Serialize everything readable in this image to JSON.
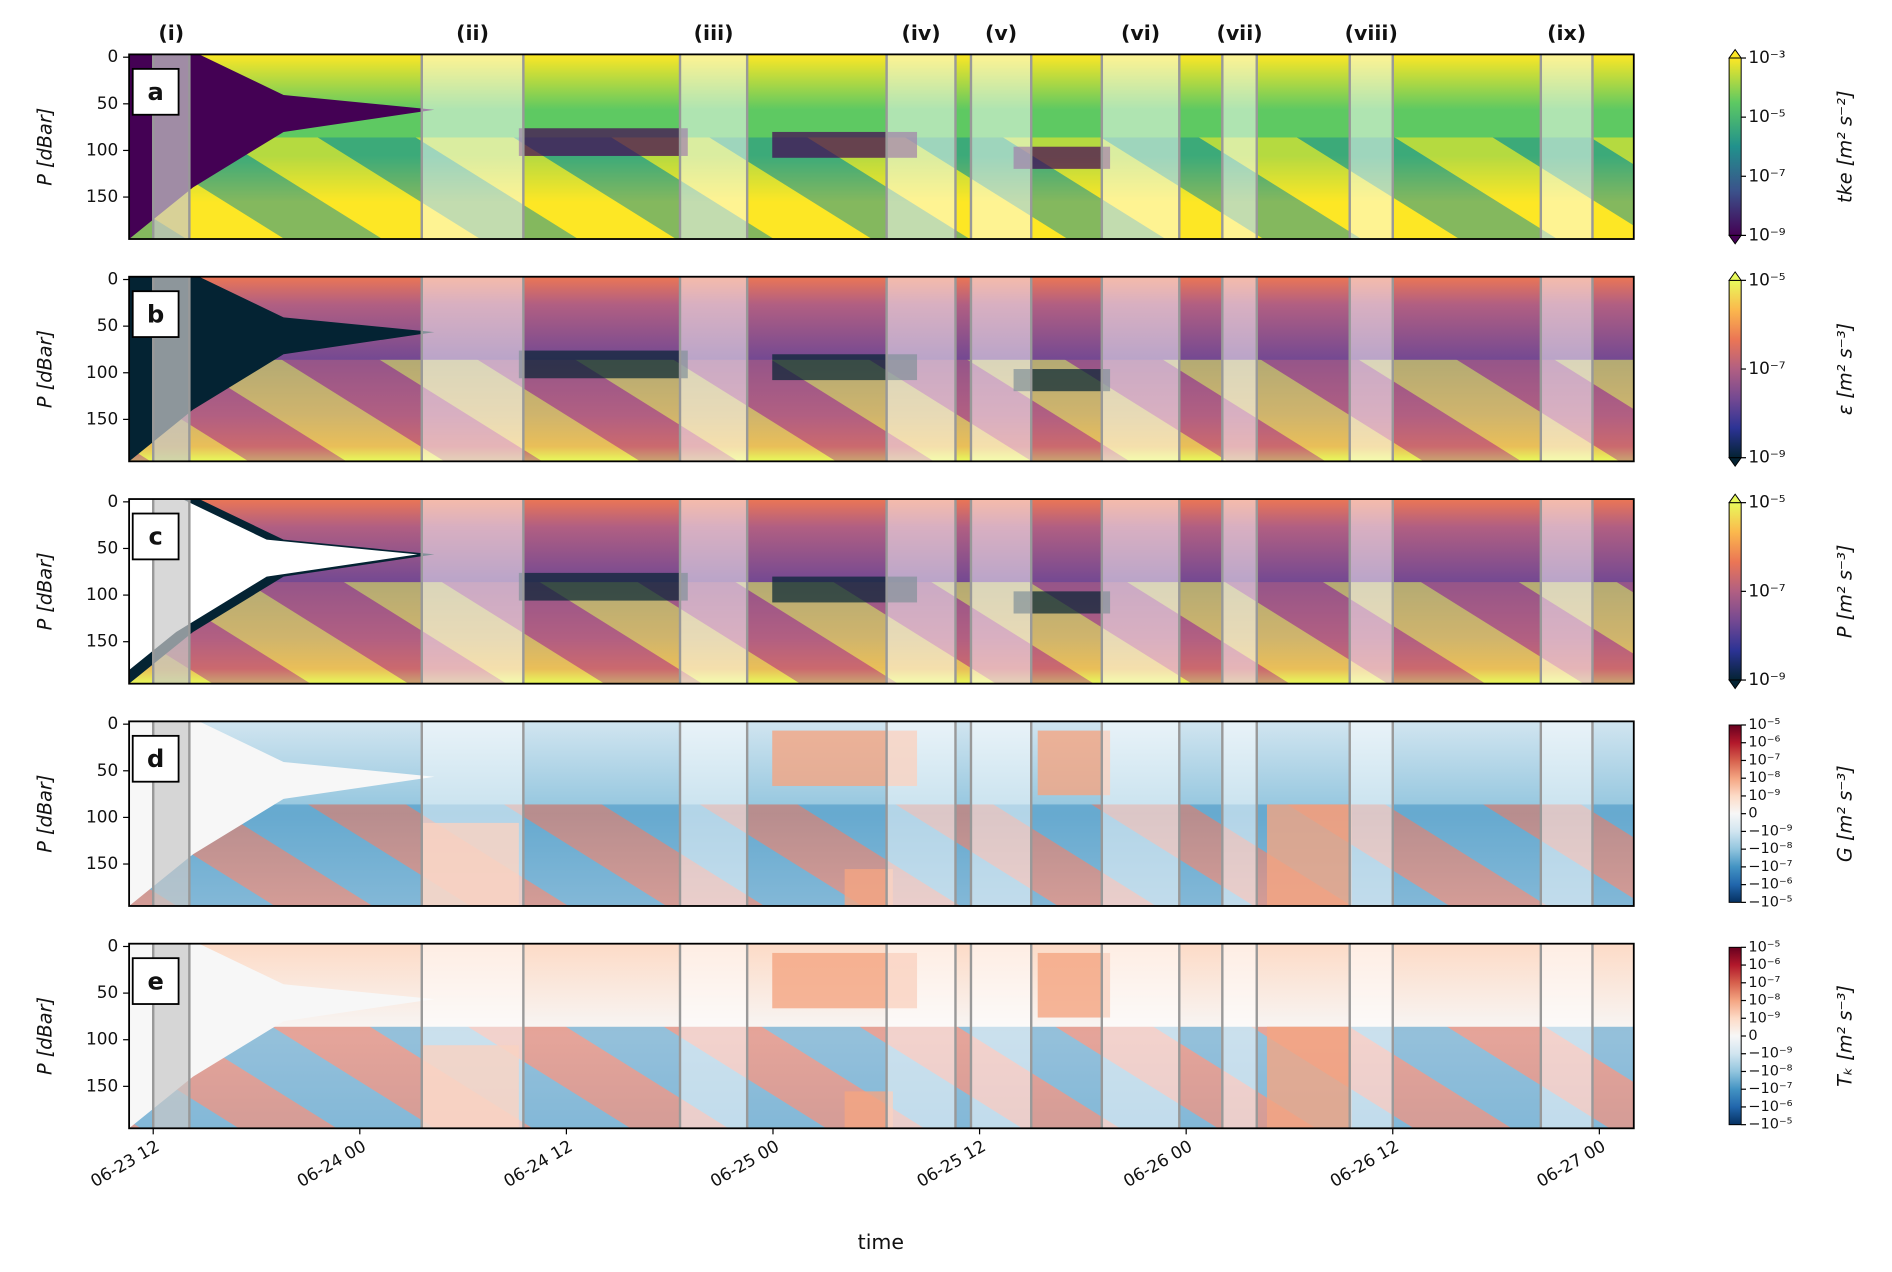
{
  "chart_data": [
    {
      "type": "heatmap",
      "panel_label": "a",
      "ylabel": "P [dBar]",
      "ylim": [
        -3,
        195
      ],
      "y_inverted": true,
      "yticks": [
        0,
        50,
        100,
        150
      ],
      "colormap": [
        "#440154",
        "#3b528b",
        "#21918c",
        "#5ec962",
        "#fde725"
      ],
      "colorbar": {
        "label": "tke [m² s⁻²]",
        "scale": "log",
        "lim": [
          1e-09,
          0.001
        ],
        "extend": "both",
        "ticks": [
          {
            "value": 0.001,
            "label": "10⁻³"
          },
          {
            "value": 1e-05,
            "label": "10⁻⁵"
          },
          {
            "value": 1e-07,
            "label": "10⁻⁷"
          },
          {
            "value": 1e-09,
            "label": "10⁻⁹"
          }
        ]
      },
      "periods": [
        {
          "label": "(i)",
          "start": 12.0,
          "end": 14.1
        },
        {
          "label": "(ii)",
          "start": 27.6,
          "end": 33.5
        },
        {
          "label": "(iii)",
          "start": 42.6,
          "end": 46.5
        },
        {
          "label": "(iv)",
          "start": 54.6,
          "end": 58.6
        },
        {
          "label": "(v)",
          "start": 59.5,
          "end": 63.0
        },
        {
          "label": "(vi)",
          "start": 67.1,
          "end": 71.6
        },
        {
          "label": "(vii)",
          "start": 74.1,
          "end": 76.1
        },
        {
          "label": "(viii)",
          "start": 81.5,
          "end": 84.0
        },
        {
          "label": "(ix)",
          "start": 92.6,
          "end": 95.6
        }
      ]
    },
    {
      "type": "heatmap",
      "panel_label": "b",
      "ylabel": "P [dBar]",
      "ylim": [
        -3,
        195
      ],
      "y_inverted": true,
      "yticks": [
        0,
        50,
        100,
        150
      ],
      "colormap": [
        "#042333",
        "#2c3395",
        "#744992",
        "#b15f82",
        "#eb7655",
        "#fbb84d",
        "#e8fa5b"
      ],
      "colorbar": {
        "label": "ε [m² s⁻³]",
        "scale": "log",
        "lim": [
          1e-09,
          1e-05
        ],
        "extend": "both",
        "ticks": [
          {
            "value": 1e-05,
            "label": "10⁻⁵"
          },
          {
            "value": 1e-07,
            "label": "10⁻⁷"
          },
          {
            "value": 1e-09,
            "label": "10⁻⁹"
          }
        ]
      }
    },
    {
      "type": "heatmap",
      "panel_label": "c",
      "ylabel": "P [dBar]",
      "ylim": [
        -3,
        195
      ],
      "y_inverted": true,
      "yticks": [
        0,
        50,
        100,
        150
      ],
      "colormap": [
        "#042333",
        "#2c3395",
        "#744992",
        "#b15f82",
        "#eb7655",
        "#fbb84d",
        "#e8fa5b"
      ],
      "colorbar": {
        "label": "P [m² s⁻³]",
        "scale": "log",
        "lim": [
          1e-09,
          1e-05
        ],
        "extend": "both",
        "ticks": [
          {
            "value": 1e-05,
            "label": "10⁻⁵"
          },
          {
            "value": 1e-07,
            "label": "10⁻⁷"
          },
          {
            "value": 1e-09,
            "label": "10⁻⁹"
          }
        ]
      }
    },
    {
      "type": "heatmap",
      "panel_label": "d",
      "ylabel": "P [dBar]",
      "ylim": [
        -3,
        195
      ],
      "y_inverted": true,
      "yticks": [
        0,
        50,
        100,
        150
      ],
      "colormap": [
        "#053061",
        "#2166ac",
        "#4393c3",
        "#92c5de",
        "#d1e5f0",
        "#f7f7f7",
        "#fddbc7",
        "#f4a582",
        "#d6604d",
        "#b2182b",
        "#67001f"
      ],
      "colorbar": {
        "label": "G [m² s⁻³]",
        "scale": "symlog",
        "linthresh": 1e-09,
        "lim": [
          -1e-05,
          1e-05
        ],
        "extend": "neither",
        "ticks": [
          {
            "value": 1e-05,
            "label": "10⁻⁵"
          },
          {
            "value": 1e-06,
            "label": "10⁻⁶"
          },
          {
            "value": 1e-07,
            "label": "10⁻⁷"
          },
          {
            "value": 1e-08,
            "label": "10⁻⁸"
          },
          {
            "value": 1e-09,
            "label": "10⁻⁹"
          },
          0,
          {
            "value": -1e-09,
            "label": "−10⁻⁹"
          },
          {
            "value": -1e-08,
            "label": "−10⁻⁸"
          },
          {
            "value": -1e-07,
            "label": "−10⁻⁷"
          },
          {
            "value": -1e-06,
            "label": "−10⁻⁶"
          },
          {
            "value": -1e-05,
            "label": "−10⁻⁵"
          }
        ]
      }
    },
    {
      "type": "heatmap",
      "panel_label": "e",
      "ylabel": "P [dBar]",
      "ylim": [
        -3,
        195
      ],
      "y_inverted": true,
      "yticks": [
        0,
        50,
        100,
        150
      ],
      "colormap": [
        "#053061",
        "#2166ac",
        "#4393c3",
        "#92c5de",
        "#d1e5f0",
        "#f7f7f7",
        "#fddbc7",
        "#f4a582",
        "#d6604d",
        "#b2182b",
        "#67001f"
      ],
      "colorbar": {
        "label": "Tₖ [m² s⁻³]",
        "scale": "symlog",
        "linthresh": 1e-09,
        "lim": [
          -1e-05,
          1e-05
        ],
        "extend": "neither",
        "ticks": [
          {
            "value": 1e-05,
            "label": "10⁻⁵"
          },
          {
            "value": 1e-06,
            "label": "10⁻⁶"
          },
          {
            "value": 1e-07,
            "label": "10⁻⁷"
          },
          {
            "value": 1e-08,
            "label": "10⁻⁸"
          },
          {
            "value": 1e-09,
            "label": "10⁻⁹"
          },
          0,
          {
            "value": -1e-09,
            "label": "−10⁻⁹"
          },
          {
            "value": -1e-08,
            "label": "−10⁻⁸"
          },
          {
            "value": -1e-07,
            "label": "−10⁻⁷"
          },
          {
            "value": -1e-06,
            "label": "−10⁻⁶"
          },
          {
            "value": -1e-05,
            "label": "−10⁻⁵"
          }
        ]
      },
      "xlabel": "time",
      "xlim": [
        10.6,
        98.0
      ],
      "xticks": [
        {
          "value": 12,
          "label": "06-23 12"
        },
        {
          "value": 24,
          "label": "06-24 00"
        },
        {
          "value": 36,
          "label": "06-24 12"
        },
        {
          "value": 48,
          "label": "06-25 00"
        },
        {
          "value": 60,
          "label": "06-25 12"
        },
        {
          "value": 72,
          "label": "06-26 00"
        },
        {
          "value": 84,
          "label": "06-26 12"
        },
        {
          "value": 96,
          "label": "06-27 00"
        }
      ]
    }
  ]
}
